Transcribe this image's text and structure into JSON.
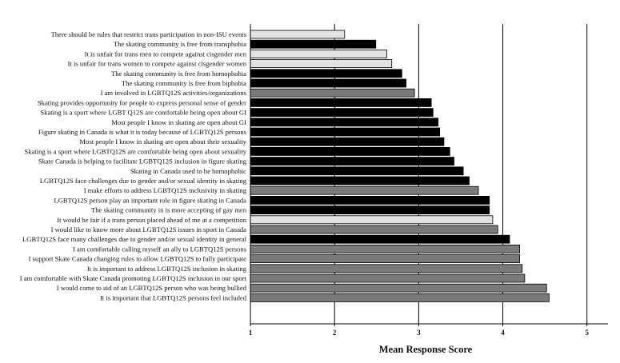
{
  "chart_data": {
    "type": "bar",
    "orientation": "horizontal",
    "xlabel": "Mean Response Score",
    "xlim": [
      1,
      5.25
    ],
    "xticks": [
      1,
      2,
      3,
      4,
      5
    ],
    "grid": "vertical major gridlines at integer ticks",
    "legend": "none",
    "colors": {
      "black": "#000000",
      "gray": "#7a7a7a",
      "light": "#e2e2e2",
      "edge": "#000000",
      "grid": "#000000"
    },
    "bars": [
      {
        "label": "There should be rules that restrict trans participation in non-ISU events",
        "value": 2.12,
        "color": "light"
      },
      {
        "label": "The skating community is free from transphobia",
        "value": 2.49,
        "color": "black"
      },
      {
        "label": "It is unfair for trans men to compete against cisgender men",
        "value": 2.62,
        "color": "light"
      },
      {
        "label": "It is unfair for trans women to compete against cisgender women",
        "value": 2.68,
        "color": "light"
      },
      {
        "label": "The skating community is free from homophobia",
        "value": 2.8,
        "color": "black"
      },
      {
        "label": "The skating community is free from biphobia",
        "value": 2.85,
        "color": "black"
      },
      {
        "label": "I am involved in LGBTQ12S activities/organizations",
        "value": 2.95,
        "color": "gray"
      },
      {
        "label": "Skating provides opportunity for people to express personal sense of gender",
        "value": 3.15,
        "color": "black"
      },
      {
        "label": "Skating is a sport where LGBT Q12S are comfortable being open about GI",
        "value": 3.17,
        "color": "black"
      },
      {
        "label": "Most people I know in skating are open about GI",
        "value": 3.23,
        "color": "black"
      },
      {
        "label": "Figure skating in Canada is what it is today because of LGBTQ12S persons",
        "value": 3.25,
        "color": "black"
      },
      {
        "label": "Most people I know in skating are open about their sexuality",
        "value": 3.3,
        "color": "black"
      },
      {
        "label": "Skating is a sport where LGBTQ12S are comfortable being open about sexuality",
        "value": 3.37,
        "color": "black"
      },
      {
        "label": "Skate Canada is helping to facilitate LGBTQ12S inclusion in figure skating",
        "value": 3.42,
        "color": "black"
      },
      {
        "label": "Skating in Canada used to be homophobic",
        "value": 3.53,
        "color": "black"
      },
      {
        "label": "LGBTQ12S face challenges due to gender and/or sexual identity in skating",
        "value": 3.6,
        "color": "black"
      },
      {
        "label": "I make efforts to address LGBTQ12S inclusivity in skating",
        "value": 3.71,
        "color": "gray"
      },
      {
        "label": "LGBTQ12S person play an important role in figure skating in Canada",
        "value": 3.84,
        "color": "black"
      },
      {
        "label": "The skating community in is more accepting of gay men",
        "value": 3.84,
        "color": "black"
      },
      {
        "label": "It would be fair if a trans person placed ahead of me at a competition",
        "value": 3.88,
        "color": "light"
      },
      {
        "label": "I would like to know more about LGBTQ12S issues in sport in Canada",
        "value": 3.94,
        "color": "gray"
      },
      {
        "label": "LGBTQ12S face many challenges due to gender and/or sexual identity in general",
        "value": 4.08,
        "color": "black"
      },
      {
        "label": "I am comfortable calling myself an ally to LGBTQ12S persons",
        "value": 4.2,
        "color": "gray"
      },
      {
        "label": "I support Skate Canada changing rules to allow LGBTQ12S to fully participate",
        "value": 4.2,
        "color": "gray"
      },
      {
        "label": "It is important to address LGBTQ12S inclusion in skating",
        "value": 4.23,
        "color": "gray"
      },
      {
        "label": "I am comfortable with Skate Canada promoting LGBTQ12S inclusion in our sport",
        "value": 4.26,
        "color": "gray"
      },
      {
        "label": "I would come to aid of an LGBTQ12S person who was being bullied",
        "value": 4.52,
        "color": "gray"
      },
      {
        "label": "It is important that LGBTQ12S persons feel included",
        "value": 4.55,
        "color": "gray"
      }
    ]
  }
}
